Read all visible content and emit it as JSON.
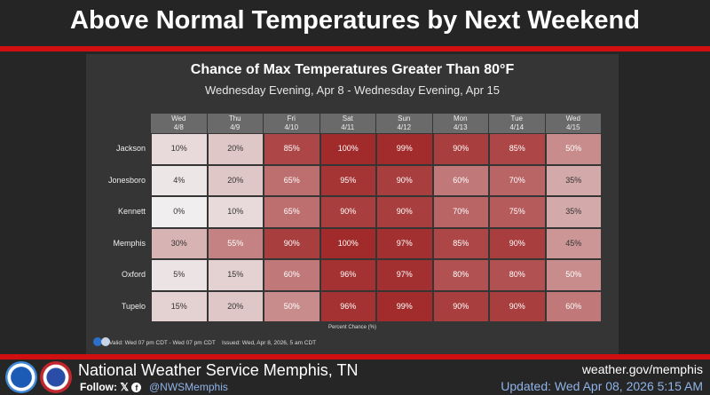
{
  "header": {
    "title": "Above Normal Temperatures by Next Weekend"
  },
  "chart_data": {
    "type": "heatmap",
    "title": "Chance of Max Temperatures Greater Than 80°F",
    "subtitle": "Wednesday Evening, Apr 8 - Wednesday Evening, Apr 15",
    "columns": [
      {
        "day": "Wed",
        "date": "4/8"
      },
      {
        "day": "Thu",
        "date": "4/9"
      },
      {
        "day": "Fri",
        "date": "4/10"
      },
      {
        "day": "Sat",
        "date": "4/11"
      },
      {
        "day": "Sun",
        "date": "4/12"
      },
      {
        "day": "Mon",
        "date": "4/13"
      },
      {
        "day": "Tue",
        "date": "4/14"
      },
      {
        "day": "Wed",
        "date": "4/15"
      }
    ],
    "rows": [
      {
        "name": "Jackson",
        "values": [
          10,
          20,
          85,
          100,
          99,
          90,
          85,
          50
        ]
      },
      {
        "name": "Jonesboro",
        "values": [
          4,
          20,
          65,
          95,
          90,
          60,
          70,
          35
        ]
      },
      {
        "name": "Kennett",
        "values": [
          0,
          10,
          65,
          90,
          90,
          70,
          75,
          35
        ]
      },
      {
        "name": "Memphis",
        "values": [
          30,
          55,
          90,
          100,
          97,
          85,
          90,
          45
        ]
      },
      {
        "name": "Oxford",
        "values": [
          5,
          15,
          60,
          96,
          97,
          80,
          80,
          50
        ]
      },
      {
        "name": "Tupelo",
        "values": [
          15,
          20,
          50,
          96,
          99,
          90,
          90,
          60
        ]
      }
    ],
    "unit": "%",
    "legend_label": "Percent Chance (%)",
    "color_low": "#f0eeee",
    "color_high": "#a12a2a"
  },
  "panel_footer": {
    "valid": "Valid: Wed 07 pm CDT - Wed 07 pm CDT",
    "issued": "Issued: Wed, Apr 8, 2026, 5 am CDT"
  },
  "footer": {
    "office": "National Weather Service Memphis, TN",
    "follow": "Follow:",
    "social_icons": [
      "x-icon",
      "facebook-icon"
    ],
    "handle": "@NWSMemphis",
    "website": "weather.gov/memphis",
    "updated": "Updated: Wed Apr 08, 2026 5:15 AM"
  }
}
